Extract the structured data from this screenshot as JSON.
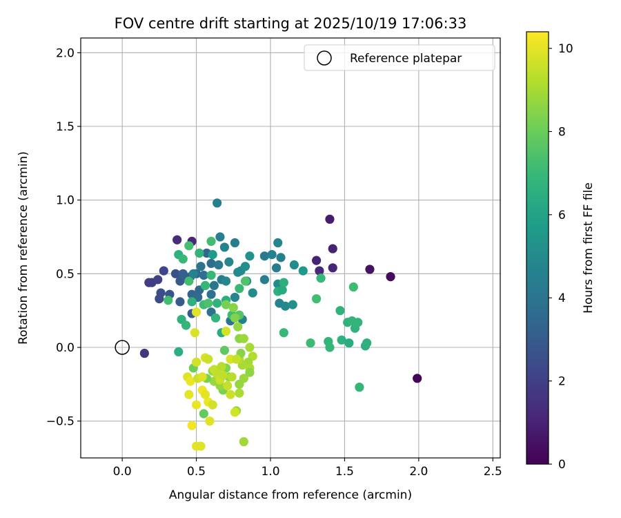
{
  "chart_data": {
    "type": "scatter",
    "title": "FOV centre drift starting at 2025/10/19 17:06:33",
    "xlabel": "Angular distance from reference (arcmin)",
    "ylabel": "Rotation from reference (arcmin)",
    "xlim": [
      -0.28,
      2.55
    ],
    "ylim": [
      -0.75,
      2.1
    ],
    "xticks": [
      0.0,
      0.5,
      1.0,
      1.5,
      2.0,
      2.5
    ],
    "xtick_labels": [
      "0.0",
      "0.5",
      "1.0",
      "1.5",
      "2.0",
      "2.5"
    ],
    "yticks": [
      -0.5,
      0.0,
      0.5,
      1.0,
      1.5,
      2.0
    ],
    "ytick_labels": [
      "−0.5",
      "0.0",
      "0.5",
      "1.0",
      "1.5",
      "2.0"
    ],
    "grid": true,
    "legend": {
      "position": "top-right",
      "entries": [
        "Reference platepar"
      ]
    },
    "reference_point": {
      "label": "Reference platepar",
      "x": 0.0,
      "y": 0.0
    },
    "colorbar": {
      "label": "Hours from first FF file",
      "min": 0,
      "max": 10.4,
      "colormap": "viridis",
      "ticks": [
        0,
        2,
        4,
        6,
        8,
        10
      ],
      "tick_labels": [
        "0",
        "2",
        "4",
        "6",
        "8",
        "10"
      ],
      "stops": [
        "#440154",
        "#482878",
        "#3e4989",
        "#31688e",
        "#26828e",
        "#1f9e89",
        "#35b779",
        "#6ece58",
        "#b5de2b",
        "#fde725"
      ]
    },
    "points": [
      {
        "x": 1.99,
        "y": -0.21,
        "c": 0.1
      },
      {
        "x": 1.81,
        "y": 0.48,
        "c": 0.3
      },
      {
        "x": 1.67,
        "y": 0.53,
        "c": 0.5
      },
      {
        "x": 1.4,
        "y": 0.87,
        "c": 0.8
      },
      {
        "x": 1.42,
        "y": 0.67,
        "c": 1.0
      },
      {
        "x": 1.42,
        "y": 0.54,
        "c": 1.1
      },
      {
        "x": 1.33,
        "y": 0.52,
        "c": 1.2
      },
      {
        "x": 1.31,
        "y": 0.59,
        "c": 1.0
      },
      {
        "x": 0.37,
        "y": 0.73,
        "c": 1.3
      },
      {
        "x": 0.47,
        "y": 0.72,
        "c": 1.2
      },
      {
        "x": 0.15,
        "y": -0.04,
        "c": 1.7
      },
      {
        "x": 0.18,
        "y": 0.44,
        "c": 1.9
      },
      {
        "x": 0.2,
        "y": 0.44,
        "c": 1.9
      },
      {
        "x": 0.24,
        "y": 0.46,
        "c": 2.0
      },
      {
        "x": 0.28,
        "y": 0.52,
        "c": 2.2
      },
      {
        "x": 0.25,
        "y": 0.33,
        "c": 2.4
      },
      {
        "x": 0.26,
        "y": 0.37,
        "c": 2.5
      },
      {
        "x": 0.32,
        "y": 0.36,
        "c": 2.7
      },
      {
        "x": 0.36,
        "y": 0.5,
        "c": 2.6
      },
      {
        "x": 0.39,
        "y": 0.45,
        "c": 2.9
      },
      {
        "x": 0.39,
        "y": 0.31,
        "c": 3.0
      },
      {
        "x": 0.43,
        "y": 0.47,
        "c": 3.2
      },
      {
        "x": 0.46,
        "y": 0.48,
        "c": 3.0
      },
      {
        "x": 0.47,
        "y": 0.36,
        "c": 3.4
      },
      {
        "x": 0.47,
        "y": 0.23,
        "c": 3.1
      },
      {
        "x": 0.5,
        "y": 0.5,
        "c": 3.3
      },
      {
        "x": 0.52,
        "y": 0.39,
        "c": 3.5
      },
      {
        "x": 0.51,
        "y": 0.34,
        "c": 3.6
      },
      {
        "x": 0.55,
        "y": 0.49,
        "c": 3.8
      },
      {
        "x": 0.57,
        "y": 0.64,
        "c": 3.4
      },
      {
        "x": 0.6,
        "y": 0.57,
        "c": 3.7
      },
      {
        "x": 0.6,
        "y": 0.36,
        "c": 3.9
      },
      {
        "x": 0.6,
        "y": 0.24,
        "c": 4.0
      },
      {
        "x": 0.62,
        "y": 0.42,
        "c": 4.1
      },
      {
        "x": 0.65,
        "y": 0.56,
        "c": 4.2
      },
      {
        "x": 0.64,
        "y": 0.98,
        "c": 4.5
      },
      {
        "x": 0.66,
        "y": 0.75,
        "c": 4.4
      },
      {
        "x": 0.67,
        "y": 0.46,
        "c": 4.3
      },
      {
        "x": 0.69,
        "y": 0.68,
        "c": 4.6
      },
      {
        "x": 0.72,
        "y": 0.58,
        "c": 4.7
      },
      {
        "x": 0.73,
        "y": 0.18,
        "c": 4.1
      },
      {
        "x": 0.76,
        "y": 0.71,
        "c": 4.5
      },
      {
        "x": 0.76,
        "y": 0.34,
        "c": 4.8
      },
      {
        "x": 0.78,
        "y": 0.51,
        "c": 4.9
      },
      {
        "x": 0.8,
        "y": 0.52,
        "c": 5.0
      },
      {
        "x": 0.81,
        "y": 0.19,
        "c": 4.6
      },
      {
        "x": 0.83,
        "y": 0.55,
        "c": 5.1
      },
      {
        "x": 0.84,
        "y": 0.45,
        "c": 5.2
      },
      {
        "x": 0.86,
        "y": 0.62,
        "c": 5.3
      },
      {
        "x": 0.88,
        "y": 0.37,
        "c": 5.0
      },
      {
        "x": 0.96,
        "y": 0.46,
        "c": 4.4
      },
      {
        "x": 0.96,
        "y": 0.62,
        "c": 4.2
      },
      {
        "x": 1.01,
        "y": 0.63,
        "c": 4.6
      },
      {
        "x": 1.04,
        "y": 0.54,
        "c": 4.3
      },
      {
        "x": 1.05,
        "y": 0.71,
        "c": 4.8
      },
      {
        "x": 1.07,
        "y": 0.61,
        "c": 4.5
      },
      {
        "x": 1.05,
        "y": 0.43,
        "c": 5.0
      },
      {
        "x": 1.06,
        "y": 0.3,
        "c": 4.7
      },
      {
        "x": 1.1,
        "y": 0.28,
        "c": 4.9
      },
      {
        "x": 1.15,
        "y": 0.29,
        "c": 5.2
      },
      {
        "x": 1.16,
        "y": 0.56,
        "c": 5.0
      },
      {
        "x": 1.22,
        "y": 0.52,
        "c": 5.6
      },
      {
        "x": 1.05,
        "y": 0.38,
        "c": 6.6
      },
      {
        "x": 1.08,
        "y": 0.39,
        "c": 6.3
      },
      {
        "x": 1.09,
        "y": 0.44,
        "c": 6.5
      },
      {
        "x": 1.09,
        "y": 0.1,
        "c": 7.0
      },
      {
        "x": 1.27,
        "y": 0.03,
        "c": 7.1
      },
      {
        "x": 1.31,
        "y": 0.33,
        "c": 7.2
      },
      {
        "x": 1.34,
        "y": 0.47,
        "c": 7.0
      },
      {
        "x": 1.39,
        "y": 0.04,
        "c": 6.8
      },
      {
        "x": 1.4,
        "y": -0.0,
        "c": 6.9
      },
      {
        "x": 1.47,
        "y": 0.25,
        "c": 6.7
      },
      {
        "x": 1.48,
        "y": 0.05,
        "c": 6.6
      },
      {
        "x": 1.52,
        "y": 0.17,
        "c": 6.7
      },
      {
        "x": 1.53,
        "y": 0.03,
        "c": 6.4
      },
      {
        "x": 1.55,
        "y": 0.18,
        "c": 6.8
      },
      {
        "x": 1.56,
        "y": 0.41,
        "c": 7.1
      },
      {
        "x": 1.57,
        "y": 0.13,
        "c": 6.7
      },
      {
        "x": 1.59,
        "y": 0.17,
        "c": 6.8
      },
      {
        "x": 1.6,
        "y": -0.27,
        "c": 6.9
      },
      {
        "x": 1.64,
        "y": 0.01,
        "c": 6.5
      },
      {
        "x": 1.65,
        "y": 0.03,
        "c": 6.6
      },
      {
        "x": 0.38,
        "y": -0.03,
        "c": 6.5
      },
      {
        "x": 0.38,
        "y": 0.63,
        "c": 6.6
      },
      {
        "x": 0.4,
        "y": 0.19,
        "c": 6.7
      },
      {
        "x": 0.41,
        "y": 0.6,
        "c": 7.0
      },
      {
        "x": 0.43,
        "y": 0.15,
        "c": 6.9
      },
      {
        "x": 0.45,
        "y": 0.69,
        "c": 7.3
      },
      {
        "x": 0.47,
        "y": 0.31,
        "c": 6.6
      },
      {
        "x": 0.45,
        "y": 0.45,
        "c": 7.2
      },
      {
        "x": 0.31,
        "y": 0.32,
        "c": 7.2
      },
      {
        "x": 0.52,
        "y": 0.64,
        "c": 6.8
      },
      {
        "x": 0.55,
        "y": 0.29,
        "c": 7.1
      },
      {
        "x": 0.56,
        "y": 0.42,
        "c": 6.9
      },
      {
        "x": 0.58,
        "y": 0.3,
        "c": 7.4
      },
      {
        "x": 0.6,
        "y": 0.49,
        "c": 7.0
      },
      {
        "x": 0.6,
        "y": 0.72,
        "c": 7.2
      },
      {
        "x": 0.63,
        "y": 0.2,
        "c": 6.8
      },
      {
        "x": 0.64,
        "y": 0.3,
        "c": 6.7
      },
      {
        "x": 0.67,
        "y": 0.1,
        "c": 6.4
      },
      {
        "x": 0.7,
        "y": 0.32,
        "c": 6.5
      },
      {
        "x": 0.74,
        "y": 0.22,
        "c": 7.1
      },
      {
        "x": 0.79,
        "y": 0.4,
        "c": 7.0
      },
      {
        "x": 0.79,
        "y": 0.22,
        "c": 7.6
      },
      {
        "x": 0.83,
        "y": 0.45,
        "c": 7.5
      },
      {
        "x": 0.7,
        "y": 0.29,
        "c": 8.2
      },
      {
        "x": 0.75,
        "y": 0.27,
        "c": 8.5
      },
      {
        "x": 0.76,
        "y": 0.2,
        "c": 8.4
      },
      {
        "x": 0.78,
        "y": 0.14,
        "c": 8.7
      },
      {
        "x": 0.79,
        "y": 0.06,
        "c": 8.6
      },
      {
        "x": 0.82,
        "y": 0.06,
        "c": 8.8
      },
      {
        "x": 0.86,
        "y": 0.0,
        "c": 9.0
      },
      {
        "x": 0.88,
        "y": -0.06,
        "c": 9.2
      },
      {
        "x": 0.85,
        "y": -0.1,
        "c": 8.9
      },
      {
        "x": 0.81,
        "y": -0.12,
        "c": 9.0
      },
      {
        "x": 0.82,
        "y": -0.21,
        "c": 8.8
      },
      {
        "x": 0.86,
        "y": -0.14,
        "c": 9.1
      },
      {
        "x": 0.86,
        "y": -0.17,
        "c": 8.6
      },
      {
        "x": 0.79,
        "y": -0.25,
        "c": 8.7
      },
      {
        "x": 0.79,
        "y": -0.31,
        "c": 9.1
      },
      {
        "x": 0.79,
        "y": -0.08,
        "c": 9.2
      },
      {
        "x": 0.8,
        "y": -0.04,
        "c": 8.5
      },
      {
        "x": 0.82,
        "y": -0.64,
        "c": 8.9
      },
      {
        "x": 0.77,
        "y": -0.43,
        "c": 8.8
      },
      {
        "x": 0.69,
        "y": -0.02,
        "c": 7.8
      },
      {
        "x": 0.7,
        "y": -0.14,
        "c": 8.4
      },
      {
        "x": 0.72,
        "y": -0.2,
        "c": 8.6
      },
      {
        "x": 0.74,
        "y": -0.2,
        "c": 9.3
      },
      {
        "x": 0.68,
        "y": -0.29,
        "c": 8.3
      },
      {
        "x": 0.66,
        "y": -0.26,
        "c": 8.7
      },
      {
        "x": 0.62,
        "y": -0.23,
        "c": 8.8
      },
      {
        "x": 0.61,
        "y": -0.16,
        "c": 8.6
      },
      {
        "x": 0.57,
        "y": -0.21,
        "c": 8.2
      },
      {
        "x": 0.55,
        "y": -0.45,
        "c": 7.9
      },
      {
        "x": 0.48,
        "y": -0.14,
        "c": 8.1
      },
      {
        "x": 0.44,
        "y": -0.2,
        "c": 9.9
      },
      {
        "x": 0.46,
        "y": -0.23,
        "c": 10.1
      },
      {
        "x": 0.45,
        "y": -0.32,
        "c": 10.0
      },
      {
        "x": 0.47,
        "y": -0.53,
        "c": 10.2
      },
      {
        "x": 0.49,
        "y": 0.1,
        "c": 9.8
      },
      {
        "x": 0.5,
        "y": 0.24,
        "c": 9.9
      },
      {
        "x": 0.5,
        "y": -0.1,
        "c": 9.7
      },
      {
        "x": 0.51,
        "y": -0.21,
        "c": 9.6
      },
      {
        "x": 0.5,
        "y": -0.39,
        "c": 10.1
      },
      {
        "x": 0.5,
        "y": -0.67,
        "c": 10.0
      },
      {
        "x": 0.53,
        "y": -0.67,
        "c": 9.9
      },
      {
        "x": 0.54,
        "y": -0.2,
        "c": 9.9
      },
      {
        "x": 0.54,
        "y": -0.29,
        "c": 10.2
      },
      {
        "x": 0.56,
        "y": -0.32,
        "c": 10.0
      },
      {
        "x": 0.56,
        "y": -0.07,
        "c": 9.8
      },
      {
        "x": 0.58,
        "y": -0.08,
        "c": 9.6
      },
      {
        "x": 0.58,
        "y": -0.37,
        "c": 10.1
      },
      {
        "x": 0.59,
        "y": -0.5,
        "c": 9.9
      },
      {
        "x": 0.61,
        "y": -0.39,
        "c": 9.7
      },
      {
        "x": 0.62,
        "y": -0.15,
        "c": 9.5
      },
      {
        "x": 0.64,
        "y": -0.18,
        "c": 9.4
      },
      {
        "x": 0.66,
        "y": -0.22,
        "c": 9.6
      },
      {
        "x": 0.67,
        "y": -0.13,
        "c": 9.3
      },
      {
        "x": 0.68,
        "y": -0.19,
        "c": 9.4
      },
      {
        "x": 0.7,
        "y": 0.11,
        "c": 9.7
      },
      {
        "x": 0.71,
        "y": -0.26,
        "c": 9.5
      },
      {
        "x": 0.73,
        "y": -0.08,
        "c": 9.8
      },
      {
        "x": 0.73,
        "y": -0.32,
        "c": 9.6
      },
      {
        "x": 0.76,
        "y": -0.44,
        "c": 9.7
      },
      {
        "x": 0.77,
        "y": -0.08,
        "c": 9.5
      },
      {
        "x": 0.61,
        "y": 0.63,
        "c": 5.6
      },
      {
        "x": 0.48,
        "y": 0.5,
        "c": 4.6
      },
      {
        "x": 0.7,
        "y": 0.45,
        "c": 4.8
      },
      {
        "x": 0.53,
        "y": 0.55,
        "c": 4.0
      },
      {
        "x": 0.41,
        "y": 0.5,
        "c": 3.2
      }
    ]
  }
}
